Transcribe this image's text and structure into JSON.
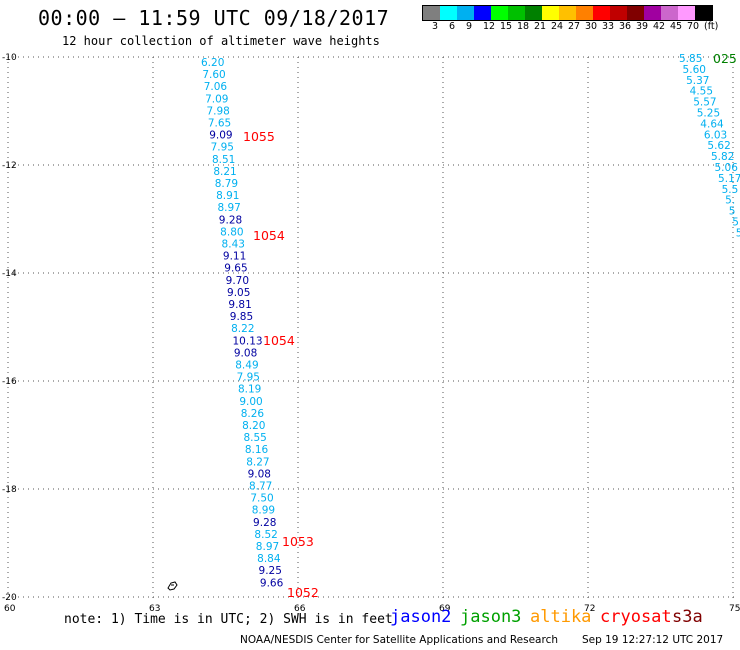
{
  "title": "00:00 – 11:59 UTC 09/18/2017",
  "subtitle": "12 hour collection of altimeter wave heights",
  "legend": {
    "labels": [
      "3",
      "6",
      "9",
      "12",
      "15",
      "18",
      "21",
      "24",
      "27",
      "30",
      "33",
      "36",
      "39",
      "42",
      "45",
      "70",
      "(ft)"
    ],
    "colors": [
      "#7f7f7f",
      "#00ffff",
      "#00b0f0",
      "#0000ff",
      "#00ff00",
      "#00c000",
      "#008000",
      "#ffff00",
      "#ffc000",
      "#ff8000",
      "#ff0000",
      "#c00000",
      "#800000",
      "#a000a0",
      "#cc66cc",
      "#ff99ff",
      "#000000"
    ]
  },
  "axes": {
    "lat_labels": [
      "-10",
      "-12",
      "-14",
      "-16",
      "-18",
      "-20"
    ],
    "lon_labels": [
      "60",
      "63",
      "66",
      "69",
      "72",
      "75"
    ]
  },
  "tracks": {
    "track1": {
      "values": [
        {
          "v": "6.20",
          "c": "#00b0f0"
        },
        {
          "v": "7.60",
          "c": "#00b0f0"
        },
        {
          "v": "7.06",
          "c": "#00b0f0"
        },
        {
          "v": "7.09",
          "c": "#00b0f0"
        },
        {
          "v": "7.98",
          "c": "#00b0f0"
        },
        {
          "v": "7.65",
          "c": "#00b0f0"
        },
        {
          "v": "9.09",
          "c": "#0000a0"
        },
        {
          "v": "7.95",
          "c": "#00b0f0"
        },
        {
          "v": "8.51",
          "c": "#00b0f0"
        },
        {
          "v": "8.21",
          "c": "#00b0f0"
        },
        {
          "v": "8.79",
          "c": "#00b0f0"
        },
        {
          "v": "8.91",
          "c": "#00b0f0"
        },
        {
          "v": "8.97",
          "c": "#00b0f0"
        },
        {
          "v": "9.28",
          "c": "#0000a0"
        },
        {
          "v": "8.80",
          "c": "#00b0f0"
        },
        {
          "v": "8.43",
          "c": "#00b0f0"
        },
        {
          "v": "9.11",
          "c": "#0000a0"
        },
        {
          "v": "9.65",
          "c": "#0000a0"
        },
        {
          "v": "9.70",
          "c": "#0000a0"
        },
        {
          "v": "9.05",
          "c": "#0000a0"
        },
        {
          "v": "9.81",
          "c": "#0000a0"
        },
        {
          "v": "9.85",
          "c": "#0000a0"
        },
        {
          "v": "8.22",
          "c": "#00b0f0"
        },
        {
          "v": "10.13",
          "c": "#0000a0"
        },
        {
          "v": "9.08",
          "c": "#0000a0"
        },
        {
          "v": "8.49",
          "c": "#00b0f0"
        },
        {
          "v": "7.95",
          "c": "#00b0f0"
        },
        {
          "v": "8.19",
          "c": "#00b0f0"
        },
        {
          "v": "9.00",
          "c": "#00b0f0"
        },
        {
          "v": "8.26",
          "c": "#00b0f0"
        },
        {
          "v": "8.20",
          "c": "#00b0f0"
        },
        {
          "v": "8.55",
          "c": "#00b0f0"
        },
        {
          "v": "8.16",
          "c": "#00b0f0"
        },
        {
          "v": "8.27",
          "c": "#00b0f0"
        },
        {
          "v": "9.08",
          "c": "#0000a0"
        },
        {
          "v": "8.77",
          "c": "#00b0f0"
        },
        {
          "v": "7.50",
          "c": "#00b0f0"
        },
        {
          "v": "8.99",
          "c": "#00b0f0"
        },
        {
          "v": "9.28",
          "c": "#0000a0"
        },
        {
          "v": "8.52",
          "c": "#00b0f0"
        },
        {
          "v": "8.97",
          "c": "#00b0f0"
        },
        {
          "v": "8.84",
          "c": "#00b0f0"
        },
        {
          "v": "9.25",
          "c": "#0000a0"
        },
        {
          "v": "9.66",
          "c": "#0000a0"
        }
      ]
    },
    "track2": {
      "values": [
        {
          "v": "5.85",
          "c": "#00b0f0"
        },
        {
          "v": "5.60",
          "c": "#00b0f0"
        },
        {
          "v": "5.37",
          "c": "#00b0f0"
        },
        {
          "v": "4.55",
          "c": "#00b0f0"
        },
        {
          "v": "5.57",
          "c": "#00b0f0"
        },
        {
          "v": "5.25",
          "c": "#00b0f0"
        },
        {
          "v": "4.64",
          "c": "#00b0f0"
        },
        {
          "v": "6.03",
          "c": "#00b0f0"
        },
        {
          "v": "5.62",
          "c": "#00b0f0"
        },
        {
          "v": "5.82",
          "c": "#00b0f0"
        },
        {
          "v": "5.06",
          "c": "#00b0f0"
        },
        {
          "v": "5.17",
          "c": "#00b0f0"
        },
        {
          "v": "5.5",
          "c": "#00b0f0"
        },
        {
          "v": "5.",
          "c": "#00b0f0"
        },
        {
          "v": "5",
          "c": "#00b0f0"
        },
        {
          "v": "5",
          "c": "#00b0f0"
        },
        {
          "v": "5",
          "c": "#00b0f0"
        }
      ]
    }
  },
  "pass_labels": {
    "track1": [
      "1055",
      "1054",
      "1054",
      "1053",
      "1052"
    ],
    "track2": [
      "025"
    ]
  },
  "note": "note: 1) Time is in UTC; 2) SWH is in feet",
  "satellites": [
    {
      "name": "jason2",
      "color": "#0000ff"
    },
    {
      "name": "jason3",
      "color": "#00a000"
    },
    {
      "name": "altika",
      "color": "#ff9900"
    },
    {
      "name": "cryosat",
      "color": "#ff0000"
    },
    {
      "name": "s3a",
      "color": "#800000"
    }
  ],
  "footer": "NOAA/NESDIS Center for Satellite Applications and Research",
  "footer_time": "Sep 19 12:27:12 UTC 2017"
}
